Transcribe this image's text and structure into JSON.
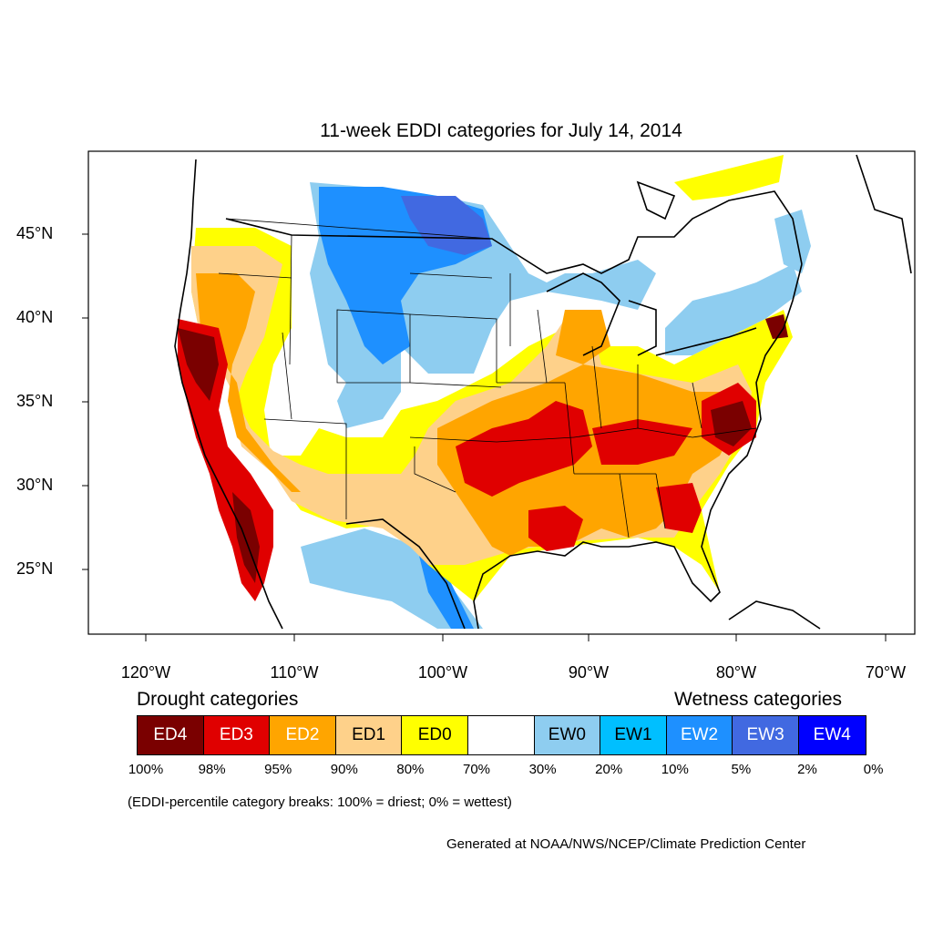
{
  "title": "11-week EDDI categories for July 14, 2014",
  "lat_labels": [
    "45°N",
    "40°N",
    "35°N",
    "30°N",
    "25°N"
  ],
  "lon_labels": [
    "120°W",
    "110°W",
    "100°W",
    "90°W",
    "80°W",
    "70°W"
  ],
  "drought_heading": "Drought categories",
  "wetness_heading": "Wetness categories",
  "legend": [
    {
      "label": "ED4",
      "color": "#7a0000",
      "text_color": "#ffffff"
    },
    {
      "label": "ED3",
      "color": "#e00000",
      "text_color": "#ffffff"
    },
    {
      "label": "ED2",
      "color": "#ffa500",
      "text_color": "#ffffff"
    },
    {
      "label": "ED1",
      "color": "#fed18a",
      "text_color": "#000000"
    },
    {
      "label": "ED0",
      "color": "#ffff00",
      "text_color": "#000000"
    },
    {
      "label": "",
      "color": "#ffffff",
      "text_color": "#000000"
    },
    {
      "label": "EW0",
      "color": "#8ecdf0",
      "text_color": "#000000"
    },
    {
      "label": "EW1",
      "color": "#00bfff",
      "text_color": "#000000"
    },
    {
      "label": "EW2",
      "color": "#1e90ff",
      "text_color": "#ffffff"
    },
    {
      "label": "EW3",
      "color": "#4169e1",
      "text_color": "#ffffff"
    },
    {
      "label": "EW4",
      "color": "#0000ff",
      "text_color": "#ffffff"
    }
  ],
  "percent_labels": [
    "100%",
    "98%",
    "95%",
    "90%",
    "80%",
    "70%",
    "30%",
    "20%",
    "10%",
    "5%",
    "2%",
    "0%"
  ],
  "note": "(EDDI-percentile category breaks: 100% = driest; 0% = wettest)",
  "credit": "Generated at NOAA/NWS/NCEP/Climate Prediction Center"
}
